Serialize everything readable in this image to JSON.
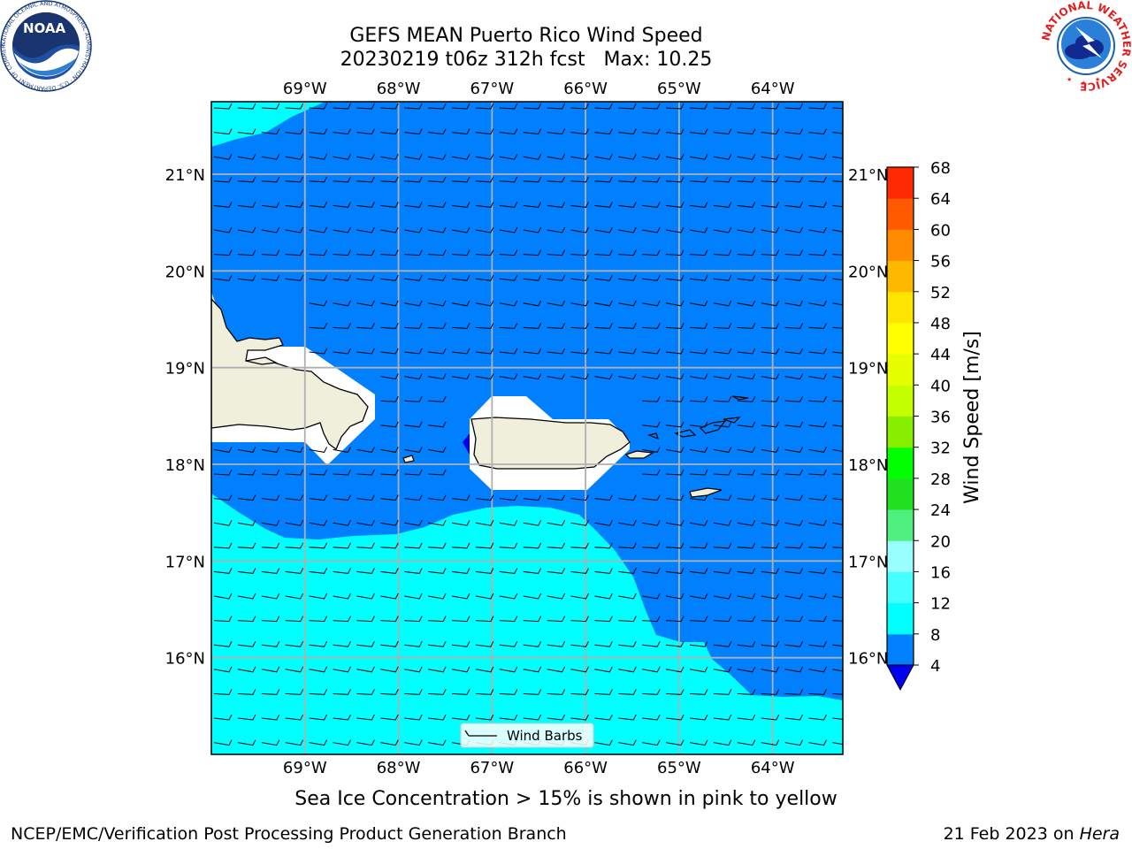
{
  "title": {
    "line1": "GEFS MEAN Puerto Rico Wind Speed",
    "line2": "20230219 t06z 312h fcst   Max: 10.25"
  },
  "map": {
    "lon_ticks": [
      {
        "value": -69,
        "label": "69°W"
      },
      {
        "value": -68,
        "label": "68°W"
      },
      {
        "value": -67,
        "label": "67°W"
      },
      {
        "value": -66,
        "label": "66°W"
      },
      {
        "value": -65,
        "label": "65°W"
      },
      {
        "value": -64,
        "label": "64°W"
      }
    ],
    "lat_ticks": [
      {
        "value": 21,
        "label": "21°N"
      },
      {
        "value": 20,
        "label": "20°N"
      },
      {
        "value": 19,
        "label": "19°N"
      },
      {
        "value": 18,
        "label": "18°N"
      },
      {
        "value": 17,
        "label": "17°N"
      },
      {
        "value": 16,
        "label": "16°N"
      }
    ],
    "lon_range": [
      -70.0,
      -63.25
    ],
    "lat_range": [
      15.0,
      21.75
    ],
    "colors": {
      "ocean_4_8": "#0080ff",
      "ocean_8_12": "#00ffff",
      "land": "#efefdc",
      "grid": "#b0b0b0"
    },
    "legend_label": "Wind Barbs"
  },
  "colorbar": {
    "label": "Wind Speed [m/s]",
    "ticks": [
      "4",
      "8",
      "12",
      "16",
      "20",
      "24",
      "28",
      "32",
      "36",
      "40",
      "44",
      "48",
      "52",
      "56",
      "60",
      "64",
      "68"
    ],
    "colors": [
      "#0080ff",
      "#00ffff",
      "#44ffff",
      "#99ffff",
      "#50f080",
      "#20e020",
      "#00ff00",
      "#88ee00",
      "#c4ff00",
      "#e6ff00",
      "#ffff00",
      "#ffe400",
      "#ffb800",
      "#ff8c00",
      "#ff5a00",
      "#ff2800",
      "#ff0000"
    ],
    "below_color": "#0000ee"
  },
  "note": "Sea Ice Concentration > 15% is shown in pink to yellow",
  "footer": {
    "left": "NCEP/EMC/Verification Post Processing Product Generation Branch",
    "date": "21 Feb 2023 on ",
    "host": "Hera"
  },
  "logos": {
    "noaa_text": "NOAA",
    "noaa_ring": "NATIONAL OCEANIC AND ATMOSPHERIC ADMINISTRATION · U.S. DEPARTMENT OF COMMERCE",
    "nws_ring": "NATIONAL WEATHER SERVICE"
  }
}
